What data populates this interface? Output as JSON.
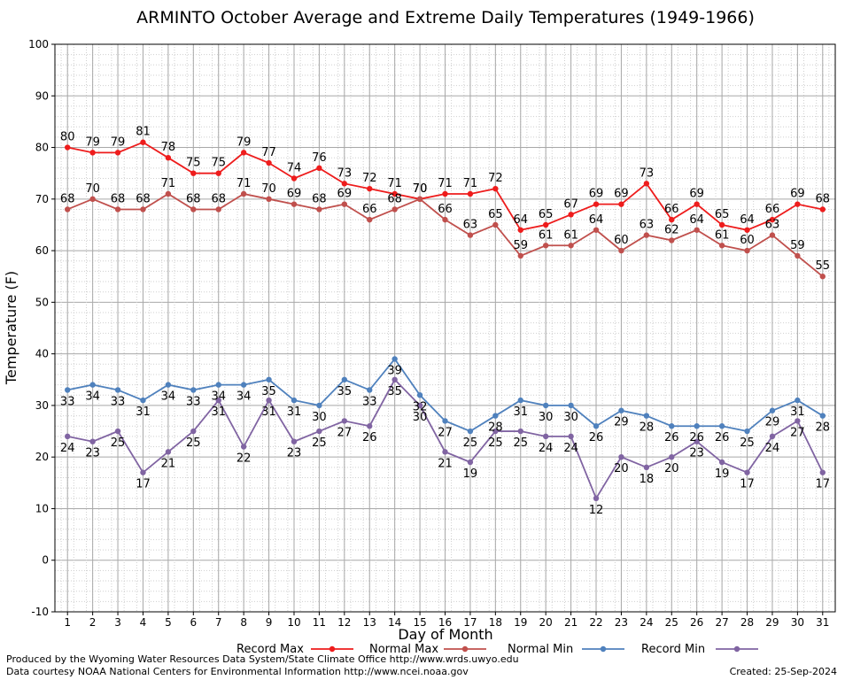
{
  "chart_data": {
    "type": "line",
    "title": "ARMINTO October Average and Extreme Daily Temperatures (1949-1966)",
    "xlabel": "Day of Month",
    "ylabel": "Temperature (F)",
    "ylim": [
      -10,
      100
    ],
    "yticks": [
      -10,
      0,
      10,
      20,
      30,
      40,
      50,
      60,
      70,
      80,
      90,
      100
    ],
    "x": [
      1,
      2,
      3,
      4,
      5,
      6,
      7,
      8,
      9,
      10,
      11,
      12,
      13,
      14,
      15,
      16,
      17,
      18,
      19,
      20,
      21,
      22,
      23,
      24,
      25,
      26,
      27,
      28,
      29,
      30,
      31
    ],
    "grid": true,
    "legend_position": "bottom",
    "series": [
      {
        "name": "Record Max",
        "color": "#ee1c1c",
        "label_side": "above",
        "values": [
          80,
          79,
          79,
          81,
          78,
          75,
          75,
          79,
          77,
          74,
          76,
          73,
          72,
          71,
          70,
          71,
          71,
          72,
          64,
          65,
          67,
          69,
          69,
          73,
          66,
          69,
          65,
          64,
          66,
          69,
          68
        ]
      },
      {
        "name": "Normal Max",
        "color": "#c0504d",
        "label_side": "above",
        "values": [
          68,
          70,
          68,
          68,
          71,
          68,
          68,
          71,
          70,
          69,
          68,
          69,
          66,
          68,
          70,
          66,
          63,
          65,
          59,
          61,
          61,
          64,
          60,
          63,
          62,
          64,
          61,
          60,
          63,
          59,
          55
        ]
      },
      {
        "name": "Normal Min",
        "color": "#4f81bd",
        "label_side": "below",
        "values": [
          33,
          34,
          33,
          31,
          34,
          33,
          34,
          34,
          35,
          31,
          30,
          35,
          33,
          39,
          32,
          27,
          25,
          28,
          31,
          30,
          30,
          26,
          29,
          28,
          26,
          26,
          26,
          25,
          29,
          31,
          28
        ]
      },
      {
        "name": "Record Min",
        "color": "#8064a2",
        "label_side": "below",
        "values": [
          24,
          23,
          25,
          17,
          21,
          25,
          31,
          22,
          31,
          23,
          25,
          27,
          26,
          35,
          30,
          21,
          19,
          25,
          25,
          24,
          24,
          12,
          20,
          18,
          20,
          23,
          19,
          17,
          24,
          27,
          17
        ]
      }
    ]
  },
  "footer": {
    "line1": "Produced by the Wyoming Water Resources Data System/State Climate Office http://www.wrds.uwyo.edu",
    "line2": "Data courtesy NOAA National Centers for Environmental Information http://www.ncei.noaa.gov",
    "created": "Created:  25-Sep-2024"
  }
}
